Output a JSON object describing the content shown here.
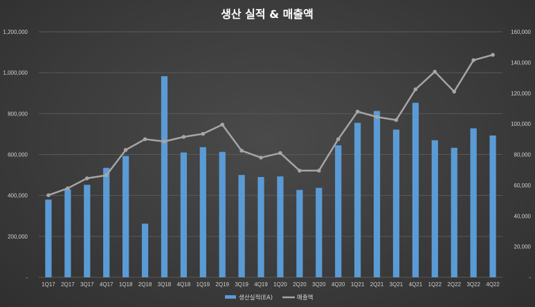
{
  "chart_data": {
    "type": "bar+line",
    "title": "생산 실적 & 매출액",
    "categories": [
      "1Q17",
      "2Q17",
      "3Q17",
      "4Q17",
      "1Q18",
      "2Q18",
      "3Q18",
      "4Q18",
      "1Q19",
      "2Q19",
      "3Q19",
      "4Q19",
      "1Q20",
      "2Q20",
      "3Q20",
      "4Q20",
      "1Q21",
      "2Q21",
      "3Q21",
      "4Q21",
      "1Q22",
      "2Q22",
      "3Q22",
      "4Q22"
    ],
    "series": [
      {
        "name": "생산실적(EA)",
        "kind": "bar",
        "axis": "left",
        "color": "#5b9bd5",
        "values": [
          380000,
          430000,
          452000,
          535000,
          593000,
          262000,
          983000,
          610000,
          636000,
          613000,
          500000,
          490000,
          493000,
          427000,
          437000,
          645000,
          755000,
          813000,
          722000,
          853000,
          670000,
          633000,
          728000,
          693000
        ]
      },
      {
        "name": "매출액",
        "kind": "line",
        "axis": "right",
        "color": "#a6a6a6",
        "values": [
          53500,
          58000,
          64500,
          66500,
          83000,
          90000,
          88500,
          91500,
          93500,
          99500,
          82500,
          78000,
          81000,
          69500,
          69500,
          90000,
          108000,
          104500,
          102500,
          122500,
          134000,
          121000,
          141500,
          145000
        ]
      }
    ],
    "y_left": {
      "min": 0,
      "max": 1200000,
      "step": 200000,
      "tick_labels": [
        "-",
        "200,000",
        "400,000",
        "600,000",
        "800,000",
        "1,000,000",
        "1,200,000"
      ]
    },
    "y_right": {
      "min": 0,
      "max": 160000,
      "step": 20000,
      "tick_labels": [
        "-",
        "20,000",
        "40,000",
        "60,000",
        "80,000",
        "100,000",
        "120,000",
        "140,000",
        "160,000"
      ]
    },
    "grid": true,
    "legend_position": "bottom-center",
    "colors": {
      "background": "#404040",
      "grid": "#5a5a5a",
      "bar": "#5b9bd5",
      "line": "#a6a6a6"
    }
  }
}
